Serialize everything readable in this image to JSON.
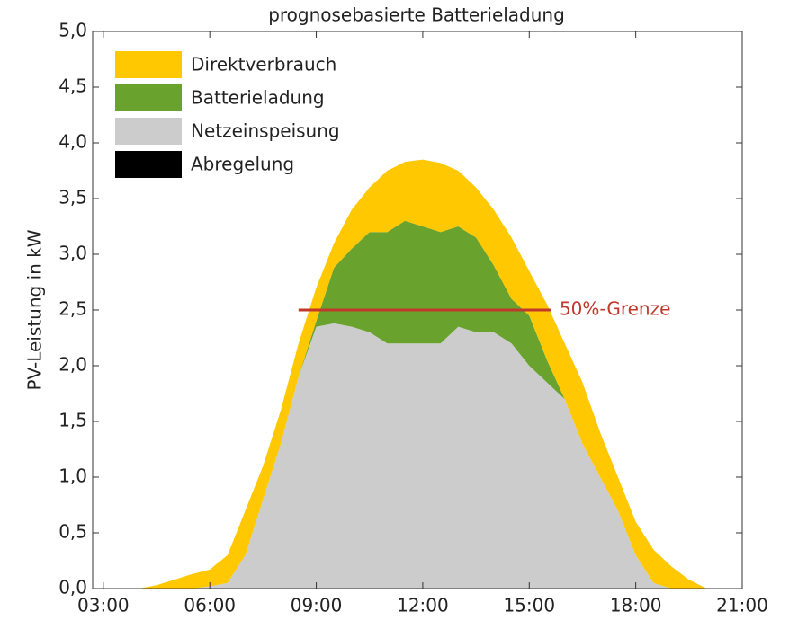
{
  "chart_data": {
    "type": "stacked_area",
    "title": "prognosebasierte Batterieladung",
    "ylabel": "PV-Leistung in kW",
    "x": [
      4,
      4.5,
      5,
      5.5,
      6,
      6.5,
      7,
      7.5,
      8,
      8.5,
      9,
      9.5,
      10,
      10.5,
      11,
      11.5,
      12,
      12.5,
      13,
      13.5,
      14,
      14.5,
      15,
      15.5,
      16,
      16.5,
      17,
      17.5,
      18,
      18.5,
      19,
      19.5,
      20
    ],
    "series": [
      {
        "name": "Direktverbrauch",
        "color": "#ffc800",
        "values": [
          0,
          0.03,
          0.08,
          0.13,
          0.15,
          0.25,
          0.4,
          0.3,
          0.3,
          0.3,
          0.3,
          0.22,
          0.35,
          0.4,
          0.55,
          0.53,
          0.6,
          0.62,
          0.5,
          0.45,
          0.5,
          0.55,
          0.4,
          0.5,
          0.5,
          0.55,
          0.4,
          0.3,
          0.3,
          0.3,
          0.2,
          0.08,
          0
        ]
      },
      {
        "name": "Batterieladung",
        "color": "#6aa22e",
        "values": [
          0,
          0,
          0,
          0,
          0,
          0,
          0,
          0,
          0,
          0,
          0.05,
          0.5,
          0.7,
          0.9,
          1.0,
          1.1,
          1.05,
          1.0,
          0.9,
          0.85,
          0.6,
          0.4,
          0.45,
          0.2,
          0,
          0,
          0,
          0,
          0,
          0,
          0,
          0,
          0
        ]
      },
      {
        "name": "Netzeinspeisung",
        "color": "#cccccc",
        "values": [
          0,
          0,
          0,
          0,
          0.02,
          0.05,
          0.3,
          0.8,
          1.3,
          1.9,
          2.35,
          2.38,
          2.35,
          2.3,
          2.2,
          2.2,
          2.2,
          2.2,
          2.35,
          2.3,
          2.3,
          2.2,
          2.0,
          1.85,
          1.7,
          1.3,
          1.0,
          0.7,
          0.3,
          0.05,
          0,
          0,
          0
        ]
      },
      {
        "name": "Abregelung",
        "color": "#000000",
        "values": [
          0,
          0,
          0,
          0,
          0,
          0,
          0,
          0,
          0,
          0,
          0,
          0,
          0,
          0,
          0,
          0,
          0,
          0,
          0,
          0,
          0,
          0,
          0,
          0,
          0,
          0,
          0,
          0,
          0,
          0,
          0,
          0,
          0
        ]
      }
    ],
    "limit": {
      "label": "50%-Grenze",
      "value": 2.5,
      "x_range": [
        8.5,
        15.6
      ],
      "color": "#c0392b"
    },
    "xlim": [
      2.7,
      21
    ],
    "xticks": [
      {
        "value": 3,
        "label": "03:00"
      },
      {
        "value": 6,
        "label": "06:00"
      },
      {
        "value": 9,
        "label": "09:00"
      },
      {
        "value": 12,
        "label": "12:00"
      },
      {
        "value": 15,
        "label": "15:00"
      },
      {
        "value": 18,
        "label": "18:00"
      },
      {
        "value": 21,
        "label": "21:00"
      }
    ],
    "ylim": [
      0,
      5
    ],
    "yticks": [
      {
        "value": 0,
        "label": "0,0"
      },
      {
        "value": 0.5,
        "label": "0,5"
      },
      {
        "value": 1,
        "label": "1,0"
      },
      {
        "value": 1.5,
        "label": "1,5"
      },
      {
        "value": 2,
        "label": "2,0"
      },
      {
        "value": 2.5,
        "label": "2,5"
      },
      {
        "value": 3,
        "label": "3,0"
      },
      {
        "value": 3.5,
        "label": "3,5"
      },
      {
        "value": 4,
        "label": "4,0"
      },
      {
        "value": 4.5,
        "label": "4,5"
      },
      {
        "value": 5,
        "label": "5,0"
      }
    ],
    "legend": "upper left"
  }
}
